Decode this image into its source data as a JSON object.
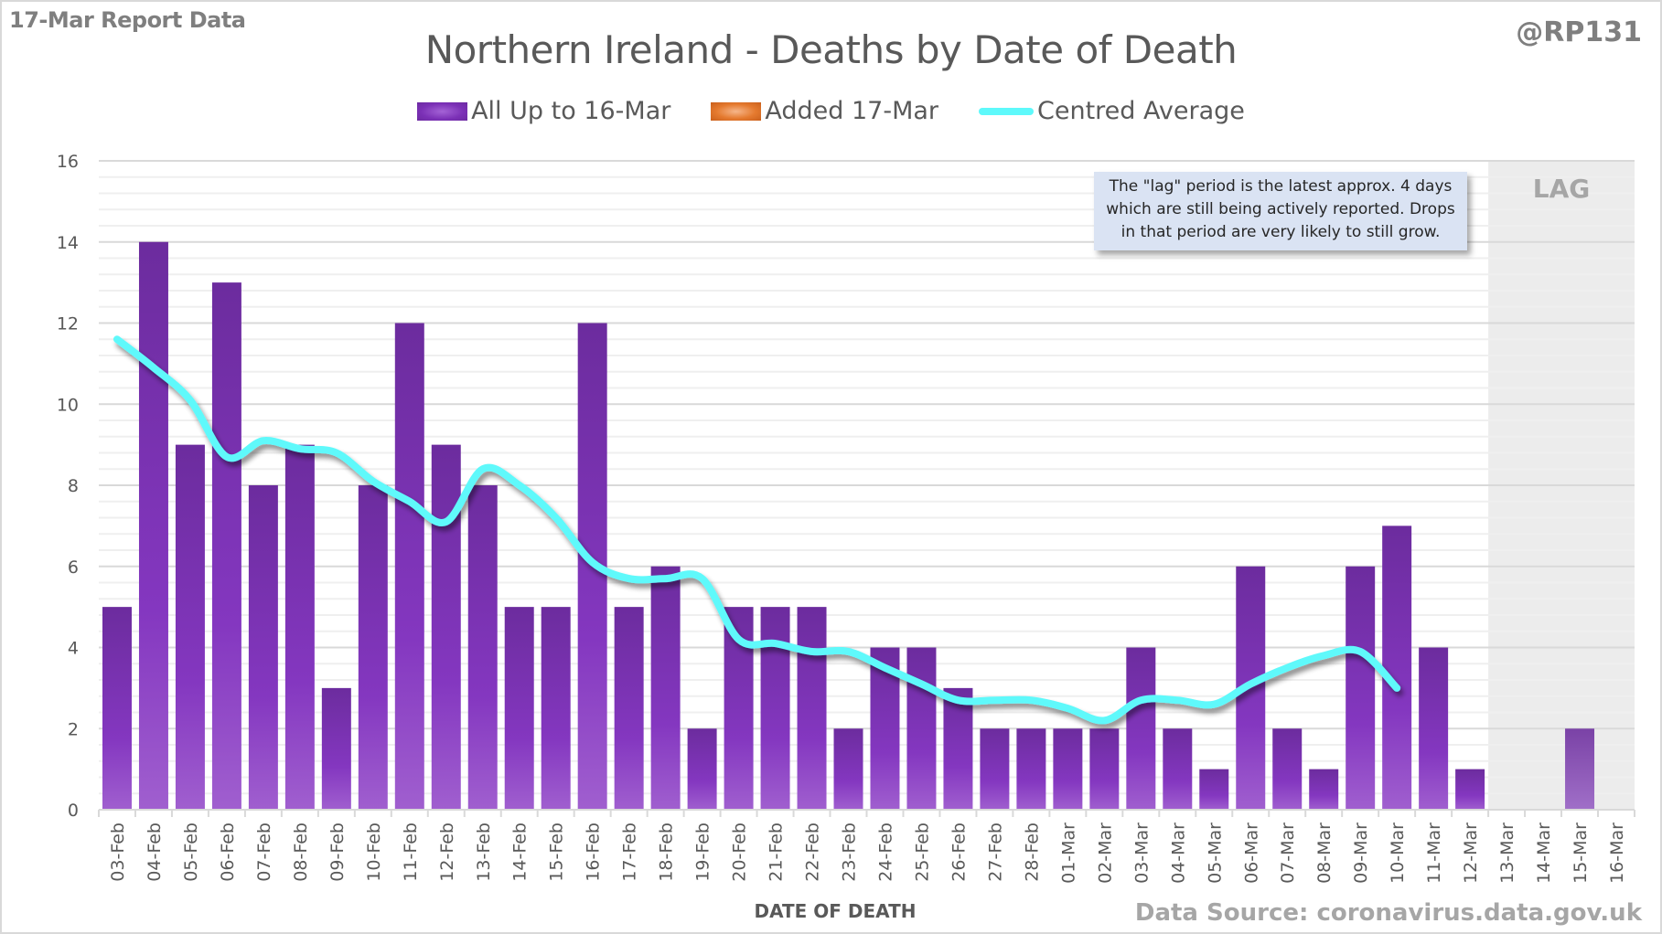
{
  "header": {
    "report_label": "17-Mar Report Data",
    "handle": "@RP131",
    "source": "Data Source: coronavirus.data.gov.uk"
  },
  "note": {
    "lines": [
      "The \"lag\" period is the latest approx. 4 days",
      "which are still being actively reported.  Drops",
      "in that period are very likely to still grow."
    ]
  },
  "lag_label": "LAG",
  "colors": {
    "bar_main": "#7030a0",
    "bar_added": "#e57a2f",
    "line": "#5ef9fb",
    "lag_shade": "#ececec",
    "grid": "#d9d9d9"
  },
  "chart_data": {
    "type": "bar",
    "title": "Northern Ireland - Deaths by Date of Death",
    "xlabel": "DATE OF DEATH",
    "ylabel": "",
    "ylim": [
      0,
      16
    ],
    "yticks": [
      0,
      2,
      4,
      6,
      8,
      10,
      12,
      14,
      16
    ],
    "grid": true,
    "legend_position": "top-center",
    "categories": [
      "03-Feb",
      "04-Feb",
      "05-Feb",
      "06-Feb",
      "07-Feb",
      "08-Feb",
      "09-Feb",
      "10-Feb",
      "11-Feb",
      "12-Feb",
      "13-Feb",
      "14-Feb",
      "15-Feb",
      "16-Feb",
      "17-Feb",
      "18-Feb",
      "19-Feb",
      "20-Feb",
      "21-Feb",
      "22-Feb",
      "23-Feb",
      "24-Feb",
      "25-Feb",
      "26-Feb",
      "27-Feb",
      "28-Feb",
      "01-Mar",
      "02-Mar",
      "03-Mar",
      "04-Mar",
      "05-Mar",
      "06-Mar",
      "07-Mar",
      "08-Mar",
      "09-Mar",
      "10-Mar",
      "11-Mar",
      "12-Mar",
      "13-Mar",
      "14-Mar",
      "15-Mar",
      "16-Mar"
    ],
    "lag_start": "13-Mar",
    "series": [
      {
        "name": "All Up to 16-Mar",
        "type": "bar",
        "values": [
          5,
          14,
          9,
          13,
          8,
          9,
          3,
          8,
          12,
          9,
          8,
          5,
          5,
          12,
          5,
          6,
          2,
          5,
          5,
          5,
          2,
          4,
          4,
          3,
          2,
          2,
          2,
          2,
          4,
          2,
          1,
          6,
          2,
          1,
          6,
          7,
          4,
          1,
          0,
          0,
          2,
          0
        ]
      },
      {
        "name": "Added 17-Mar",
        "type": "bar",
        "values": [
          0,
          0,
          0,
          0,
          0,
          0,
          0,
          0,
          0,
          0,
          0,
          0,
          0,
          0,
          0,
          0,
          0,
          0,
          0,
          0,
          0,
          0,
          0,
          0,
          0,
          0,
          0,
          0,
          0,
          0,
          0,
          0,
          0,
          0,
          0,
          0,
          0,
          0,
          0,
          0,
          0,
          0
        ]
      },
      {
        "name": "Centred Average",
        "type": "line",
        "values": [
          11.6,
          10.9,
          10.1,
          8.7,
          9.1,
          8.9,
          8.8,
          8.1,
          7.6,
          7.1,
          8.4,
          8.0,
          7.2,
          6.1,
          5.7,
          5.7,
          5.7,
          4.2,
          4.1,
          3.9,
          3.9,
          3.5,
          3.1,
          2.7,
          2.7,
          2.7,
          2.5,
          2.2,
          2.7,
          2.7,
          2.6,
          3.1,
          3.5,
          3.8,
          3.9,
          3.0,
          null,
          null,
          null,
          null,
          null,
          null
        ]
      }
    ]
  }
}
